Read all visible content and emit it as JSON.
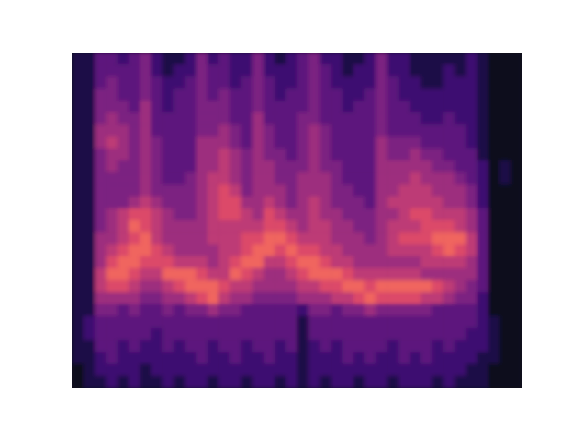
{
  "chart_data": {
    "type": "heatmap",
    "tick_labels": false,
    "color_range": [
      0,
      9
    ],
    "cells": [
      [
        1,
        1,
        3,
        3,
        2,
        3,
        4,
        2,
        1,
        1,
        2,
        4,
        2,
        3,
        2,
        2,
        4,
        2,
        1,
        2,
        3,
        4,
        2,
        2,
        1,
        1,
        2,
        4,
        2,
        2,
        1,
        1,
        1,
        1,
        1,
        2,
        1,
        0,
        0,
        0
      ],
      [
        1,
        1,
        3,
        3,
        3,
        3,
        4,
        2,
        1,
        2,
        2,
        4,
        3,
        3,
        2,
        2,
        4,
        2,
        2,
        2,
        3,
        4,
        3,
        2,
        1,
        2,
        2,
        4,
        2,
        2,
        1,
        1,
        1,
        2,
        1,
        2,
        1,
        0,
        0,
        0
      ],
      [
        1,
        1,
        3,
        4,
        3,
        3,
        4,
        3,
        2,
        2,
        3,
        4,
        3,
        3,
        2,
        3,
        4,
        3,
        2,
        2,
        3,
        4,
        3,
        2,
        2,
        2,
        2,
        4,
        3,
        2,
        2,
        1,
        1,
        2,
        2,
        2,
        1,
        0,
        0,
        0
      ],
      [
        1,
        1,
        4,
        4,
        3,
        3,
        4,
        3,
        2,
        3,
        3,
        4,
        3,
        4,
        3,
        3,
        4,
        3,
        2,
        3,
        3,
        4,
        3,
        3,
        2,
        2,
        3,
        4,
        3,
        2,
        2,
        2,
        2,
        2,
        2,
        2,
        1,
        0,
        0,
        0
      ],
      [
        1,
        1,
        4,
        4,
        4,
        3,
        5,
        3,
        2,
        3,
        3,
        4,
        4,
        4,
        3,
        3,
        4,
        3,
        3,
        3,
        3,
        4,
        3,
        3,
        2,
        3,
        3,
        4,
        3,
        3,
        2,
        2,
        2,
        2,
        2,
        2,
        1,
        0,
        0,
        0
      ],
      [
        1,
        1,
        4,
        5,
        4,
        4,
        5,
        3,
        3,
        3,
        3,
        4,
        4,
        4,
        3,
        3,
        5,
        3,
        3,
        3,
        4,
        4,
        3,
        3,
        3,
        3,
        3,
        4,
        3,
        3,
        3,
        2,
        2,
        3,
        2,
        2,
        1,
        0,
        0,
        0
      ],
      [
        1,
        1,
        5,
        5,
        5,
        4,
        5,
        3,
        3,
        3,
        3,
        4,
        4,
        5,
        4,
        3,
        5,
        4,
        3,
        3,
        4,
        5,
        4,
        3,
        3,
        3,
        3,
        4,
        3,
        3,
        3,
        3,
        3,
        3,
        3,
        2,
        1,
        0,
        0,
        0
      ],
      [
        1,
        1,
        5,
        6,
        5,
        4,
        5,
        4,
        3,
        3,
        3,
        5,
        5,
        5,
        4,
        3,
        5,
        4,
        3,
        3,
        4,
        5,
        4,
        3,
        3,
        3,
        3,
        5,
        4,
        4,
        4,
        3,
        3,
        3,
        3,
        2,
        1,
        0,
        0,
        0
      ],
      [
        1,
        1,
        4,
        5,
        5,
        4,
        5,
        4,
        3,
        3,
        3,
        5,
        5,
        6,
        5,
        4,
        5,
        4,
        4,
        3,
        4,
        5,
        4,
        3,
        3,
        3,
        3,
        5,
        4,
        4,
        5,
        4,
        4,
        3,
        3,
        3,
        1,
        0,
        0,
        0
      ],
      [
        1,
        1,
        4,
        5,
        4,
        4,
        5,
        4,
        3,
        3,
        3,
        5,
        5,
        6,
        5,
        4,
        5,
        5,
        4,
        4,
        4,
        5,
        4,
        4,
        3,
        3,
        3,
        5,
        5,
        5,
        5,
        5,
        4,
        4,
        3,
        3,
        2,
        0,
        1,
        0
      ],
      [
        1,
        1,
        4,
        4,
        4,
        4,
        5,
        4,
        3,
        3,
        4,
        5,
        6,
        6,
        5,
        4,
        5,
        5,
        4,
        4,
        5,
        5,
        5,
        4,
        3,
        3,
        3,
        5,
        5,
        5,
        6,
        5,
        5,
        5,
        4,
        3,
        2,
        0,
        1,
        0
      ],
      [
        1,
        1,
        4,
        4,
        4,
        4,
        5,
        4,
        4,
        4,
        4,
        5,
        6,
        7,
        6,
        4,
        5,
        5,
        5,
        4,
        5,
        5,
        5,
        4,
        4,
        3,
        3,
        5,
        5,
        6,
        6,
        6,
        5,
        5,
        5,
        4,
        2,
        0,
        0,
        0
      ],
      [
        1,
        1,
        4,
        4,
        4,
        5,
        6,
        5,
        4,
        4,
        4,
        5,
        6,
        7,
        7,
        5,
        5,
        6,
        5,
        4,
        5,
        6,
        5,
        4,
        4,
        4,
        3,
        5,
        6,
        6,
        6,
        6,
        6,
        5,
        5,
        4,
        2,
        0,
        0,
        0
      ],
      [
        1,
        1,
        4,
        5,
        6,
        7,
        7,
        6,
        5,
        4,
        4,
        5,
        6,
        7,
        7,
        6,
        5,
        7,
        6,
        5,
        5,
        6,
        5,
        5,
        4,
        4,
        4,
        5,
        5,
        6,
        7,
        7,
        6,
        6,
        6,
        5,
        3,
        0,
        0,
        0
      ],
      [
        1,
        1,
        4,
        5,
        6,
        8,
        7,
        6,
        5,
        5,
        5,
        5,
        6,
        6,
        6,
        6,
        6,
        7,
        7,
        6,
        5,
        6,
        6,
        5,
        5,
        4,
        4,
        5,
        6,
        6,
        6,
        7,
        7,
        7,
        6,
        5,
        3,
        0,
        0,
        0
      ],
      [
        1,
        1,
        5,
        5,
        6,
        7,
        8,
        6,
        5,
        5,
        5,
        5,
        6,
        6,
        6,
        7,
        7,
        8,
        8,
        7,
        6,
        6,
        6,
        5,
        5,
        5,
        4,
        5,
        6,
        7,
        7,
        7,
        8,
        8,
        8,
        6,
        3,
        0,
        0,
        0
      ],
      [
        1,
        1,
        5,
        6,
        7,
        8,
        8,
        7,
        6,
        5,
        5,
        5,
        5,
        6,
        6,
        7,
        8,
        8,
        7,
        8,
        7,
        7,
        6,
        6,
        5,
        5,
        5,
        5,
        6,
        6,
        6,
        6,
        7,
        8,
        7,
        6,
        3,
        0,
        0,
        0
      ],
      [
        1,
        1,
        5,
        7,
        8,
        8,
        7,
        7,
        7,
        6,
        6,
        6,
        5,
        6,
        7,
        8,
        8,
        6,
        6,
        7,
        8,
        8,
        7,
        6,
        6,
        5,
        5,
        5,
        5,
        5,
        5,
        6,
        6,
        6,
        6,
        5,
        3,
        0,
        0,
        0
      ],
      [
        1,
        1,
        6,
        8,
        8,
        7,
        6,
        6,
        8,
        8,
        8,
        7,
        6,
        6,
        8,
        7,
        6,
        5,
        5,
        6,
        7,
        8,
        8,
        8,
        7,
        6,
        6,
        6,
        6,
        6,
        6,
        5,
        5,
        5,
        5,
        5,
        3,
        0,
        0,
        0
      ],
      [
        1,
        1,
        6,
        7,
        7,
        6,
        5,
        5,
        6,
        7,
        8,
        8,
        8,
        7,
        6,
        6,
        5,
        5,
        5,
        5,
        6,
        6,
        7,
        7,
        8,
        8,
        7,
        8,
        8,
        8,
        8,
        8,
        7,
        6,
        5,
        4,
        3,
        0,
        0,
        0
      ],
      [
        1,
        1,
        5,
        5,
        5,
        5,
        4,
        4,
        5,
        5,
        6,
        7,
        8,
        6,
        5,
        5,
        4,
        4,
        4,
        4,
        5,
        5,
        5,
        6,
        6,
        7,
        8,
        7,
        7,
        7,
        7,
        6,
        6,
        5,
        4,
        4,
        2,
        0,
        0,
        0
      ],
      [
        1,
        1,
        4,
        4,
        3,
        4,
        3,
        3,
        4,
        3,
        4,
        4,
        5,
        4,
        4,
        3,
        3,
        3,
        3,
        3,
        2,
        4,
        4,
        3,
        4,
        4,
        5,
        4,
        4,
        4,
        4,
        4,
        3,
        3,
        3,
        3,
        2,
        0,
        0,
        0
      ],
      [
        1,
        2,
        3,
        3,
        3,
        3,
        3,
        3,
        3,
        3,
        3,
        3,
        3,
        3,
        3,
        3,
        3,
        3,
        3,
        3,
        1,
        3,
        3,
        3,
        3,
        3,
        3,
        3,
        3,
        3,
        3,
        3,
        3,
        3,
        3,
        3,
        2,
        1,
        0,
        0
      ],
      [
        1,
        2,
        3,
        3,
        3,
        3,
        3,
        2,
        3,
        3,
        3,
        3,
        3,
        3,
        3,
        3,
        3,
        3,
        3,
        3,
        1,
        3,
        3,
        3,
        3,
        3,
        3,
        3,
        3,
        3,
        3,
        3,
        3,
        3,
        3,
        2,
        2,
        1,
        0,
        0
      ],
      [
        1,
        1,
        3,
        3,
        2,
        3,
        2,
        2,
        3,
        2,
        3,
        3,
        2,
        3,
        3,
        2,
        3,
        3,
        2,
        3,
        1,
        2,
        3,
        2,
        3,
        3,
        3,
        3,
        2,
        3,
        3,
        3,
        2,
        3,
        2,
        2,
        2,
        1,
        0,
        0
      ],
      [
        1,
        1,
        2,
        3,
        2,
        2,
        2,
        2,
        2,
        2,
        2,
        3,
        2,
        2,
        3,
        2,
        2,
        3,
        2,
        2,
        1,
        2,
        2,
        2,
        3,
        2,
        3,
        2,
        2,
        3,
        2,
        3,
        2,
        2,
        2,
        2,
        1,
        1,
        0,
        0
      ],
      [
        0,
        1,
        2,
        2,
        2,
        2,
        1,
        2,
        2,
        2,
        2,
        2,
        2,
        2,
        2,
        2,
        2,
        2,
        2,
        2,
        1,
        2,
        2,
        2,
        2,
        2,
        2,
        2,
        2,
        2,
        2,
        2,
        2,
        2,
        2,
        1,
        1,
        0,
        0,
        0
      ],
      [
        0,
        1,
        1,
        2,
        1,
        2,
        1,
        1,
        2,
        1,
        2,
        2,
        1,
        2,
        2,
        1,
        2,
        2,
        1,
        2,
        1,
        2,
        1,
        2,
        2,
        1,
        2,
        2,
        1,
        2,
        2,
        2,
        1,
        2,
        1,
        1,
        1,
        0,
        0,
        0
      ]
    ]
  }
}
